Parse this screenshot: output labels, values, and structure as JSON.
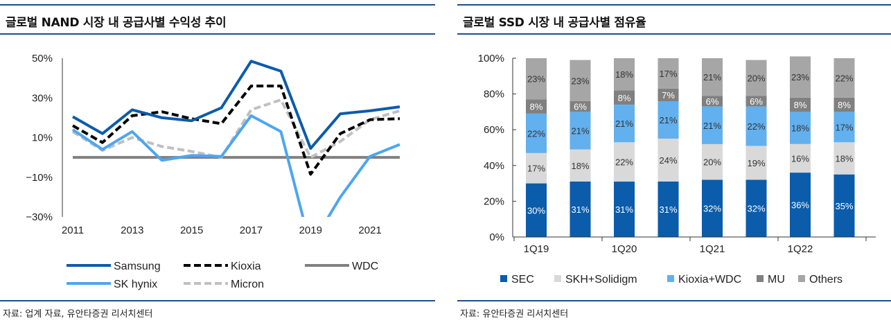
{
  "left": {
    "title": "글로벌 NAND 시장 내 공급사별 수익성 추이",
    "source": "자료: 업계 자료, 유안타증권 리서치센터"
  },
  "right": {
    "title": "글로벌 SSD 시장 내 공급사별 점유율",
    "source": "자료: 유안타증권 리서치센터"
  },
  "chart_data": [
    {
      "type": "line",
      "title": "글로벌 NAND 시장 내 공급사별 수익성 추이",
      "x": [
        2011,
        2012,
        2013,
        2014,
        2015,
        2016,
        2017,
        2018,
        2019,
        2020,
        2021,
        2022
      ],
      "x_tick_labels": [
        "2011",
        "2013",
        "2015",
        "2017",
        "2019",
        "2021"
      ],
      "y_tick_labels": [
        "50%",
        "30%",
        "10%",
        "−10%",
        "−30%"
      ],
      "ylim": [
        -30,
        50
      ],
      "legend_position": "bottom",
      "series": [
        {
          "name": "Samsung",
          "color": "#0b5cab",
          "style": "solid",
          "values": [
            20.5,
            12,
            24,
            20,
            18.5,
            25,
            48.5,
            43.5,
            4.5,
            22,
            23.5,
            25.5
          ]
        },
        {
          "name": "Kioxia",
          "color": "#000000",
          "style": "dashed",
          "values": [
            16,
            7.5,
            21,
            23,
            19.5,
            17,
            36,
            36,
            -8.5,
            12,
            19,
            19.5
          ]
        },
        {
          "name": "WDC",
          "color": "#808080",
          "style": "solid",
          "values": [
            0,
            0,
            0,
            0,
            0,
            0,
            0,
            0,
            0,
            0,
            0,
            0
          ]
        },
        {
          "name": "SK hynix",
          "color": "#4da6f0",
          "style": "solid",
          "values": [
            14,
            4,
            13,
            -1.5,
            1,
            0.5,
            21,
            13,
            -45,
            -20,
            0.5,
            6.5
          ]
        },
        {
          "name": "Micron",
          "color": "#c0c0c0",
          "style": "dashed",
          "values": [
            13,
            3.5,
            10,
            5.5,
            3,
            0,
            24,
            29,
            0,
            8,
            19,
            23.5
          ]
        }
      ]
    },
    {
      "type": "bar",
      "stacked": true,
      "title": "글로벌 SSD 시장 내 공급사별 점유율",
      "categories": [
        "1Q19",
        "3Q19",
        "1Q20",
        "3Q20",
        "1Q21",
        "3Q21",
        "1Q22",
        "3Q22"
      ],
      "x_tick_labels": [
        "1Q19",
        "1Q20",
        "1Q21",
        "1Q22"
      ],
      "y_tick_labels": [
        "100%",
        "80%",
        "60%",
        "40%",
        "20%",
        "0%"
      ],
      "ylim": [
        0,
        100
      ],
      "legend_position": "bottom",
      "series": [
        {
          "name": "SEC",
          "color": "#0b5cab",
          "values": [
            30,
            31,
            31,
            31,
            32,
            32,
            36,
            35
          ],
          "labels": [
            "30%",
            "31%",
            "31%",
            "31%",
            "32%",
            "32%",
            "36%",
            "35%"
          ]
        },
        {
          "name": "SKH+Solidigm",
          "color": "#d9d9d9",
          "values": [
            17,
            18,
            22,
            24,
            20,
            19,
            16,
            18
          ],
          "labels": [
            "17%",
            "18%",
            "22%",
            "24%",
            "20%",
            "19%",
            "16%",
            "18%"
          ]
        },
        {
          "name": "Kioxia+WDC",
          "color": "#62b0ee",
          "values": [
            22,
            21,
            21,
            21,
            21,
            22,
            18,
            17
          ],
          "labels": [
            "22%",
            "21%",
            "21%",
            "21%",
            "21%",
            "22%",
            "18%",
            "17%"
          ]
        },
        {
          "name": "MU",
          "color": "#808080",
          "values": [
            8,
            6,
            8,
            7,
            6,
            6,
            8,
            8
          ],
          "labels": [
            "8%",
            "6%",
            "8%",
            "7%",
            "6%",
            "6%",
            "8%",
            "8%"
          ]
        },
        {
          "name": "Others",
          "color": "#a6a6a6",
          "values": [
            23,
            23,
            18,
            17,
            21,
            20,
            23,
            22
          ],
          "labels": [
            "23%",
            "23%",
            "18%",
            "17%",
            "21%",
            "20%",
            "23%",
            "22%"
          ]
        }
      ]
    }
  ]
}
